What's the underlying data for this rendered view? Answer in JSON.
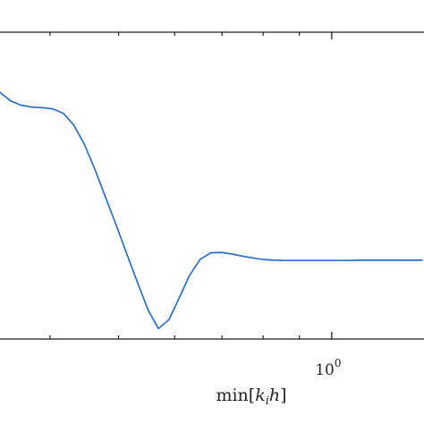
{
  "chart_data": {
    "type": "line",
    "title": "",
    "xlabel": "min[k_i h]",
    "xlabel_parts": {
      "prefix": "min[",
      "k": "k",
      "sub": "i",
      "h": "h",
      "suffix": "]"
    },
    "ylabel": "",
    "x_scale": "log",
    "xlim": [
      0.34,
      1.35
    ],
    "x_ticks_major": [
      {
        "value": 1.0,
        "label_base": "10",
        "label_exp": "0"
      }
    ],
    "x_ticks_minor": [
      0.4,
      0.5,
      0.6,
      0.7,
      0.8,
      0.9
    ],
    "ylim": [
      0,
      1
    ],
    "y_ticks": [],
    "grid": false,
    "legend": "none",
    "series": [
      {
        "color": "#2a6fc9",
        "x": [
          0.34,
          0.352,
          0.364,
          0.377,
          0.39,
          0.404,
          0.418,
          0.432,
          0.447,
          0.463,
          0.479,
          0.496,
          0.513,
          0.531,
          0.55,
          0.569,
          0.589,
          0.609,
          0.63,
          0.652,
          0.675,
          0.699,
          0.723,
          0.748,
          0.775,
          0.801,
          0.829,
          0.858,
          0.888,
          0.919,
          0.951,
          0.985,
          1.019,
          1.055,
          1.092,
          1.13,
          1.169,
          1.21,
          1.253,
          1.297,
          1.342
        ],
        "y": [
          0.804,
          0.776,
          0.762,
          0.756,
          0.754,
          0.75,
          0.735,
          0.698,
          0.636,
          0.553,
          0.463,
          0.372,
          0.28,
          0.188,
          0.096,
          0.034,
          0.063,
          0.134,
          0.208,
          0.26,
          0.281,
          0.282,
          0.277,
          0.27,
          0.264,
          0.259,
          0.257,
          0.256,
          0.256,
          0.256,
          0.256,
          0.256,
          0.256,
          0.256,
          0.257,
          0.257,
          0.257,
          0.257,
          0.257,
          0.257,
          0.257
        ]
      }
    ]
  }
}
